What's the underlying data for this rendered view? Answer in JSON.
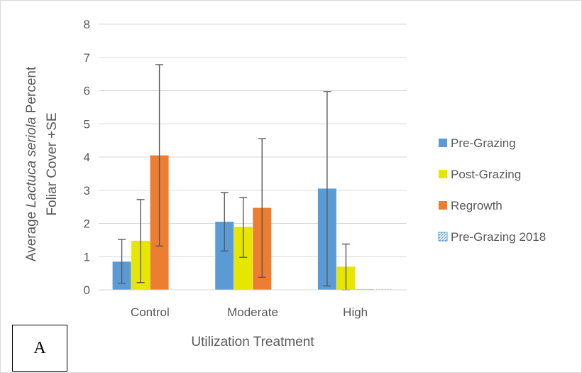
{
  "chart_data": {
    "type": "bar",
    "title": "",
    "xlabel": "Utilization Treatment",
    "ylabel_parts": [
      "Average ",
      "Lactuca seriola",
      " Percent"
    ],
    "ylabel_line2": "Foliar Cover +SE",
    "ylim": [
      0,
      8
    ],
    "yticks": [
      0,
      1,
      2,
      3,
      4,
      5,
      6,
      7,
      8
    ],
    "grid": true,
    "legend_position": "right",
    "categories": [
      "Control",
      "Moderate",
      "High"
    ],
    "series": [
      {
        "name": "Pre-Grazing",
        "color": "#5b9bd5",
        "values": [
          0.85,
          2.05,
          3.05
        ],
        "err_low": [
          0.2,
          1.17,
          0.12
        ],
        "err_high": [
          1.52,
          2.93,
          5.97
        ]
      },
      {
        "name": "Post-Grazing",
        "color": "#e6e600",
        "values": [
          1.48,
          1.9,
          0.7
        ],
        "err_low": [
          0.22,
          0.98,
          0.0
        ],
        "err_high": [
          2.72,
          2.78,
          1.38
        ]
      },
      {
        "name": "Regrowth",
        "color": "#ed7d31",
        "values": [
          4.05,
          2.47,
          0
        ],
        "err_low": [
          1.32,
          0.38,
          null
        ],
        "err_high": [
          6.78,
          4.55,
          null
        ]
      },
      {
        "name": "Pre-Grazing 2018",
        "color": "#5b9bd5",
        "pattern": "hatched",
        "values": [
          null,
          null,
          0.0
        ],
        "err_low": [
          null,
          null,
          null
        ],
        "err_high": [
          null,
          null,
          null
        ]
      }
    ]
  },
  "panel_label": "A"
}
